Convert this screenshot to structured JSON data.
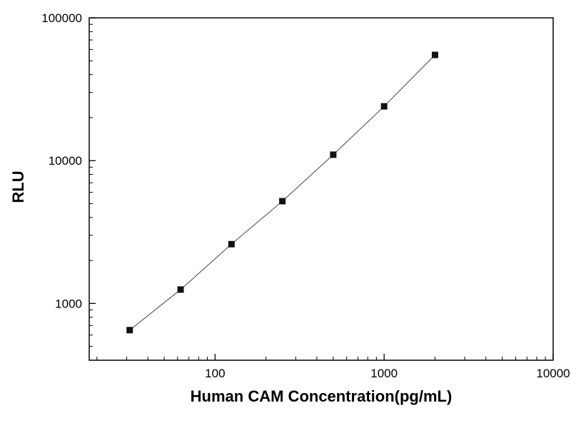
{
  "figure": {
    "background": "#ffffff",
    "frame_color": "#000000"
  },
  "chart_data": {
    "type": "scatter",
    "title": "",
    "xlabel": "Human CAM Concentration(pg/mL)",
    "ylabel": "RLU",
    "x_scale": "log",
    "y_scale": "log",
    "xlim": [
      18,
      10000
    ],
    "ylim": [
      400,
      100000
    ],
    "x_major_ticks": [
      100,
      1000,
      10000
    ],
    "y_major_ticks": [
      1000,
      10000,
      100000
    ],
    "grid": false,
    "legend": "none",
    "x": [
      31.25,
      62.5,
      125,
      250,
      500,
      1000,
      2000
    ],
    "y": [
      650,
      1250,
      2600,
      5200,
      11000,
      24000,
      55000
    ],
    "marker": "square",
    "marker_size": 9,
    "marker_color": "#111111",
    "line_color": "#444444",
    "line_width": 1
  }
}
